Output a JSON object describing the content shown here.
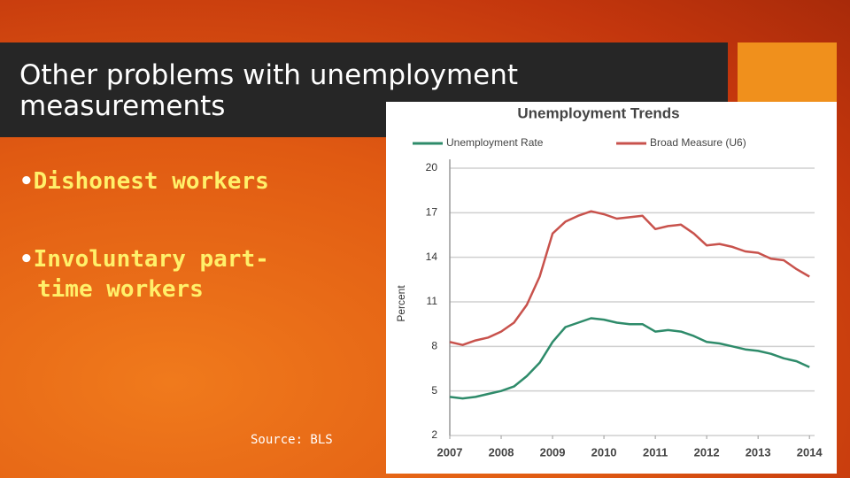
{
  "slide": {
    "title": "Other problems with unemployment measurements",
    "bullets": [
      "Dishonest workers",
      "Involuntary part-time workers"
    ],
    "source": "Source: BLS"
  },
  "chart_data": {
    "type": "line",
    "title": "Unemployment Trends",
    "y_label": "Percent",
    "x": [
      2007,
      2007.25,
      2007.5,
      2007.75,
      2008,
      2008.25,
      2008.5,
      2008.75,
      2009,
      2009.25,
      2009.5,
      2009.75,
      2010,
      2010.25,
      2010.5,
      2010.75,
      2011,
      2011.25,
      2011.5,
      2011.75,
      2012,
      2012.25,
      2012.5,
      2012.75,
      2013,
      2013.25,
      2013.5,
      2013.75,
      2014
    ],
    "series": [
      {
        "name": "Unemployment Rate",
        "color": "#2e8b6a",
        "values": [
          4.6,
          4.5,
          4.6,
          4.8,
          5.0,
          5.3,
          6.0,
          6.9,
          8.3,
          9.3,
          9.6,
          9.9,
          9.8,
          9.6,
          9.5,
          9.5,
          9.0,
          9.1,
          9.0,
          8.7,
          8.3,
          8.2,
          8.0,
          7.8,
          7.7,
          7.5,
          7.2,
          7.0,
          6.6
        ]
      },
      {
        "name": "Broad Measure (U6)",
        "color": "#c8524c",
        "values": [
          8.3,
          8.1,
          8.4,
          8.6,
          9.0,
          9.6,
          10.8,
          12.7,
          15.6,
          16.4,
          16.8,
          17.1,
          16.9,
          16.6,
          16.7,
          16.8,
          15.9,
          16.1,
          16.2,
          15.6,
          14.8,
          14.9,
          14.7,
          14.4,
          14.3,
          13.9,
          13.8,
          13.2,
          12.7
        ]
      }
    ],
    "xlim": [
      2007,
      2014.1
    ],
    "xticks": [
      2007,
      2008,
      2009,
      2010,
      2011,
      2012,
      2013,
      2014
    ],
    "ylim": [
      2,
      20
    ],
    "yticks": [
      2,
      5,
      8,
      11,
      14,
      17,
      20
    ],
    "grid": true
  }
}
